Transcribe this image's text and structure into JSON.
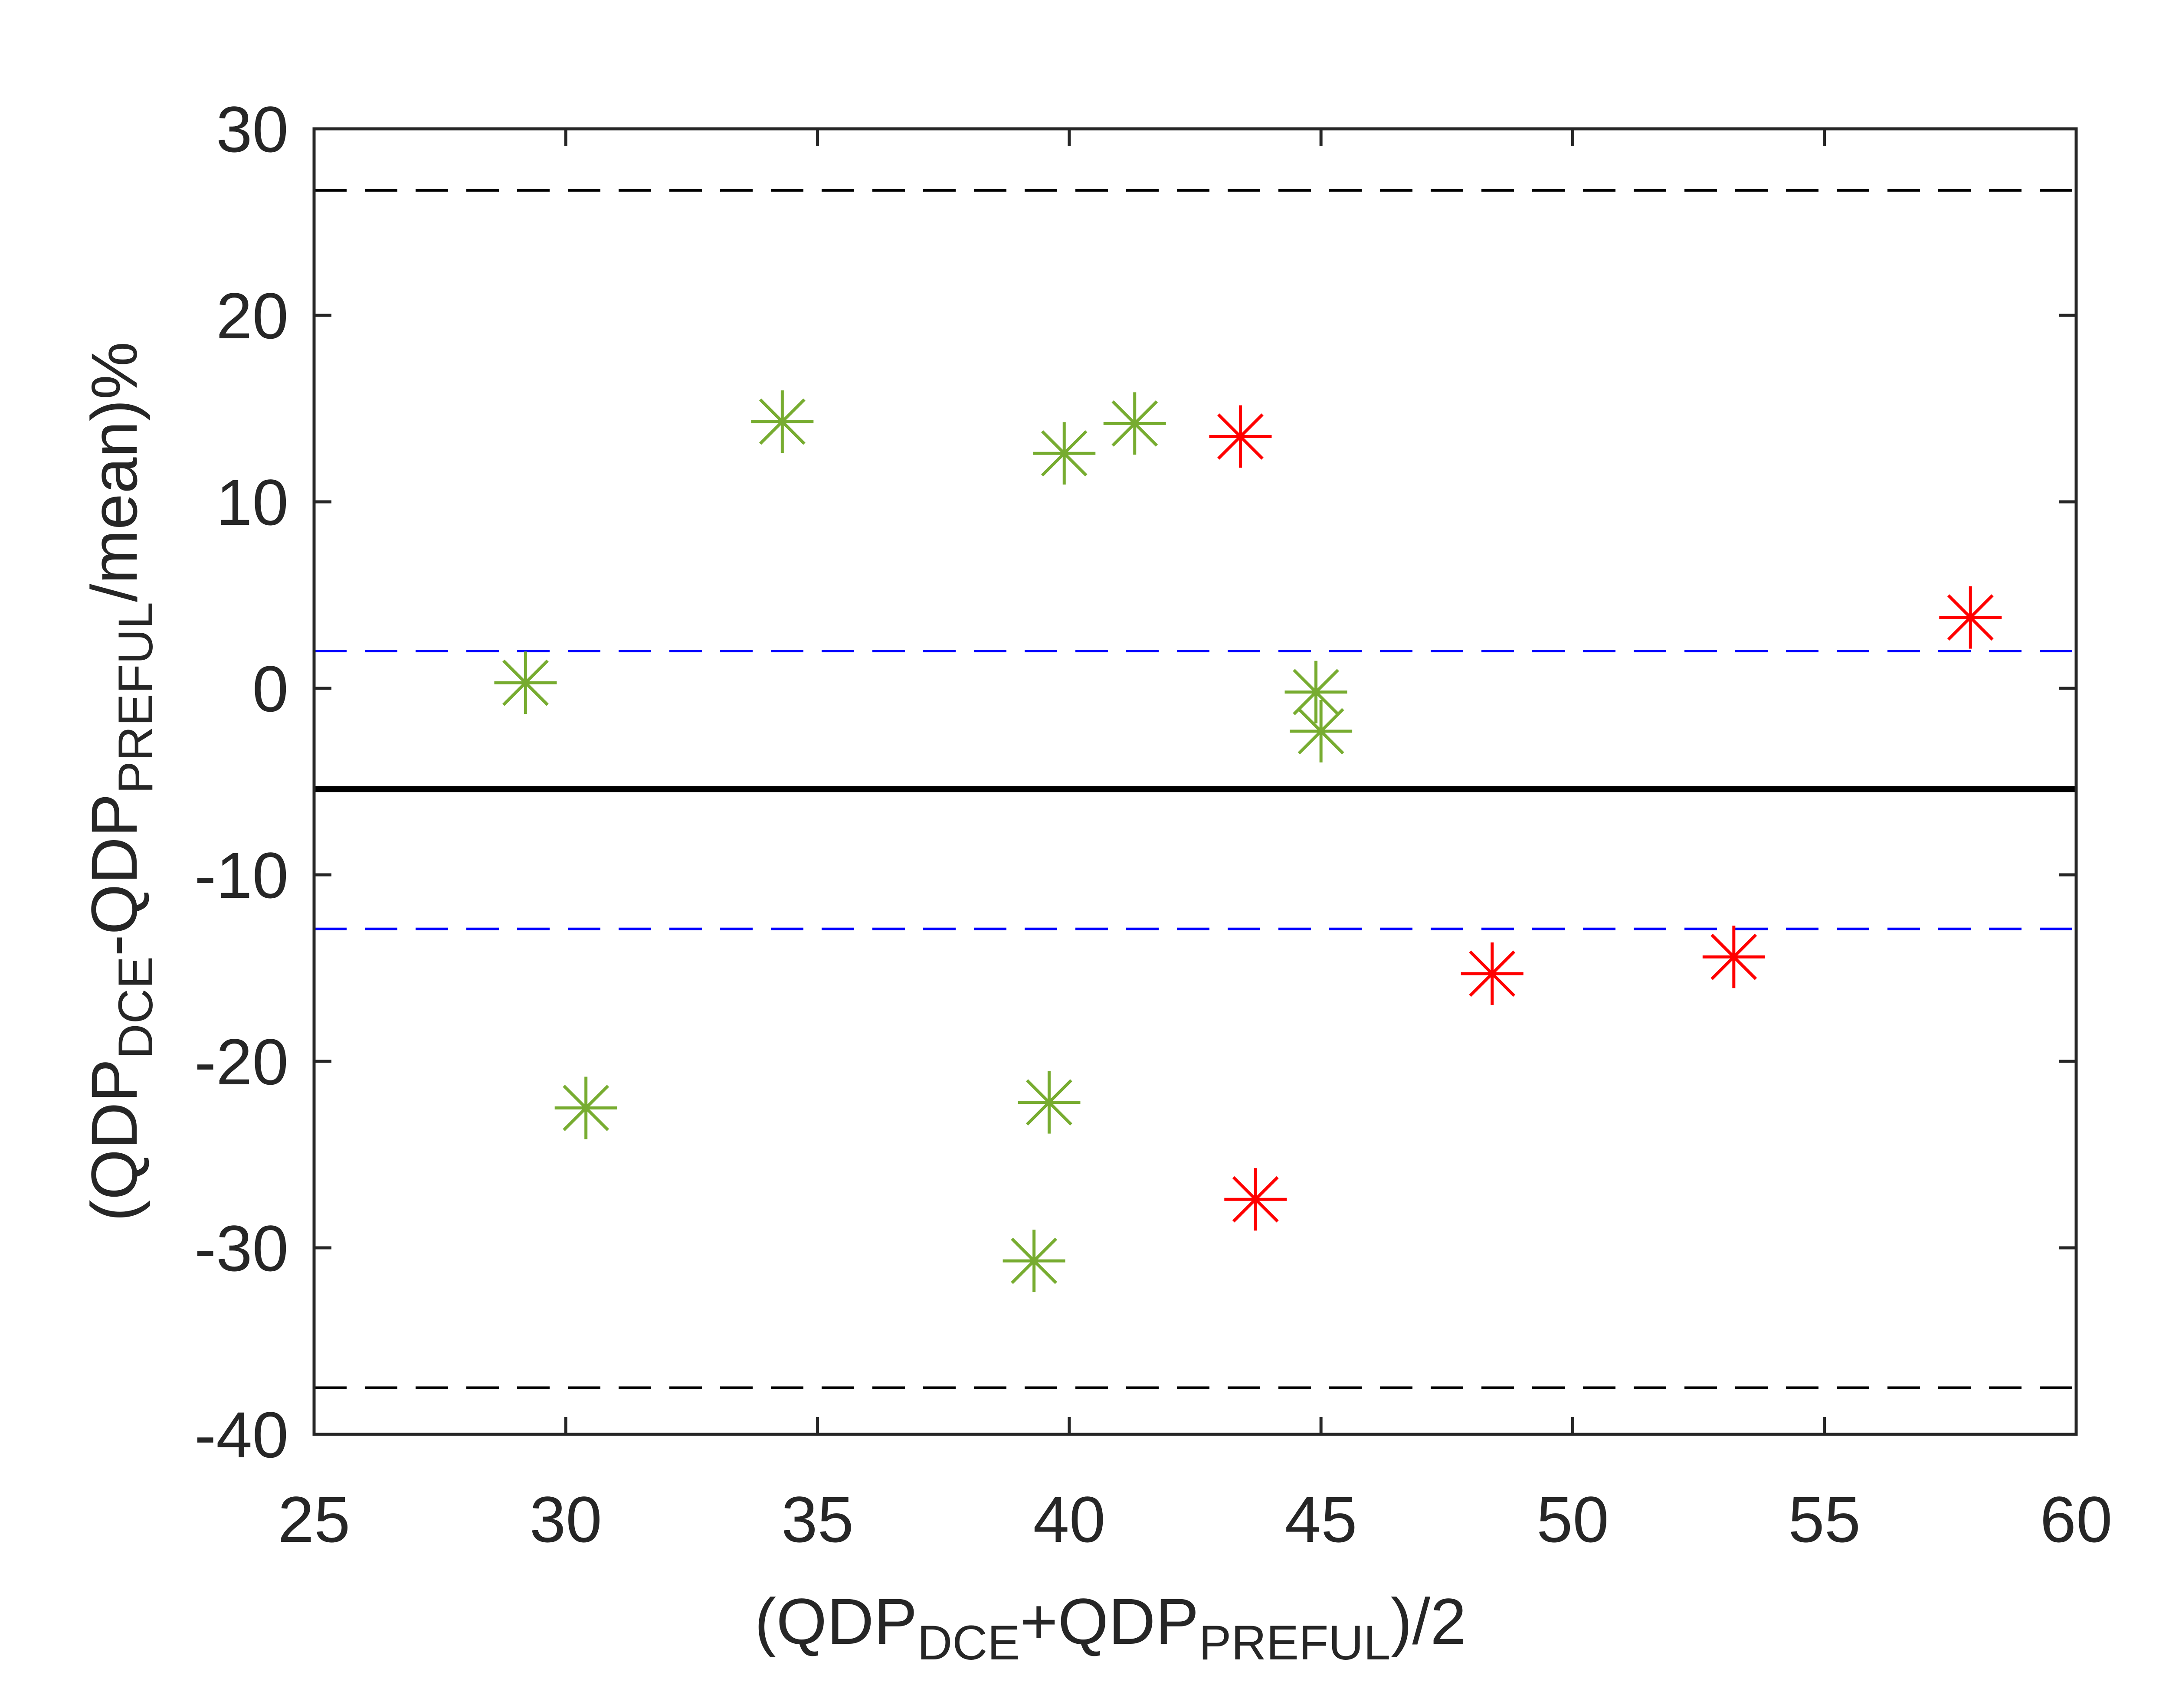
{
  "chart_data": {
    "type": "scatter",
    "title": "",
    "xlabel": {
      "parts": [
        {
          "text": "(QDP",
          "sub": false
        },
        {
          "text": "DCE",
          "sub": true
        },
        {
          "text": "+QDP",
          "sub": false
        },
        {
          "text": "PREFUL",
          "sub": true
        },
        {
          "text": ")/2",
          "sub": false
        }
      ]
    },
    "ylabel": {
      "parts": [
        {
          "text": "(QDP",
          "sub": false
        },
        {
          "text": "DCE",
          "sub": true
        },
        {
          "text": "-QDP",
          "sub": false
        },
        {
          "text": "PREFUL",
          "sub": true
        },
        {
          "text": "/mean)%",
          "sub": false
        }
      ]
    },
    "xlim": [
      25,
      60
    ],
    "ylim": [
      -40,
      30
    ],
    "xticks": [
      25,
      30,
      35,
      40,
      45,
      50,
      55,
      60
    ],
    "yticks": [
      30,
      20,
      10,
      0,
      -10,
      -20,
      -30,
      -40
    ],
    "grid": false,
    "reference_lines": [
      {
        "name": "upper-limit-of-agreement",
        "y": 26.7,
        "color": "#000000",
        "style": "dashed"
      },
      {
        "name": "upper-ci",
        "y": 2.0,
        "color": "#0000ff",
        "style": "dashed"
      },
      {
        "name": "mean-difference",
        "y": -5.4,
        "color": "#000000",
        "style": "solid"
      },
      {
        "name": "lower-ci",
        "y": -12.9,
        "color": "#0000ff",
        "style": "dashed"
      },
      {
        "name": "lower-limit-of-agreement",
        "y": -37.5,
        "color": "#000000",
        "style": "dashed"
      }
    ],
    "series": [
      {
        "name": "green",
        "color": "#77ac30",
        "marker": "asterisk",
        "x": [
          29.2,
          34.3,
          39.9,
          41.3,
          44.9,
          45.0,
          30.4,
          39.6,
          39.3
        ],
        "y": [
          0.3,
          14.3,
          12.6,
          14.2,
          -0.2,
          -2.3,
          -22.5,
          -22.2,
          -30.7
        ]
      },
      {
        "name": "red",
        "color": "#ff0000",
        "marker": "asterisk",
        "x": [
          43.4,
          57.9,
          48.4,
          53.2,
          43.7
        ],
        "y": [
          13.5,
          3.8,
          -15.3,
          -14.4,
          -27.4
        ]
      }
    ]
  }
}
